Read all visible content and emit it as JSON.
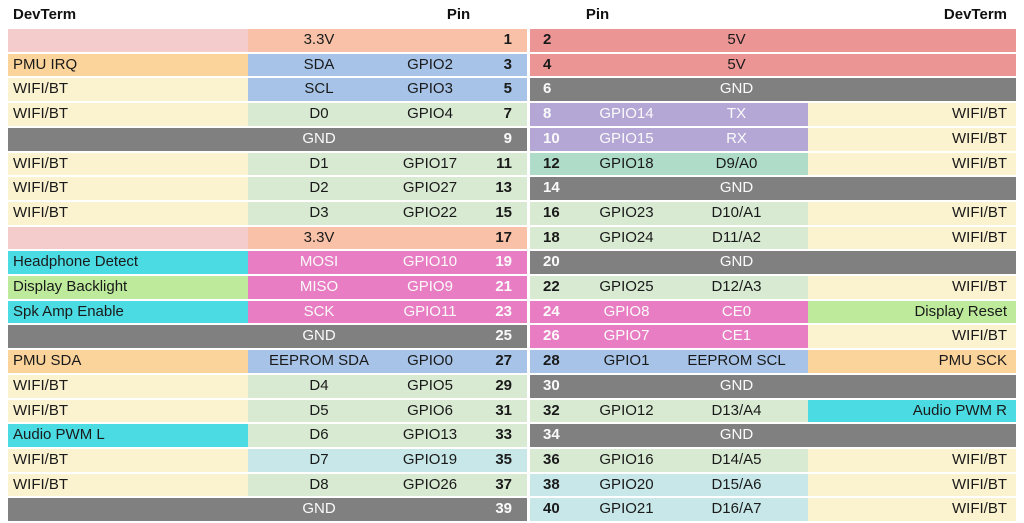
{
  "colors": {
    "pink": "#f4cccc",
    "salmon": "#f9c2a8",
    "red": "#ec9595",
    "orange": "#fbd49c",
    "yellow": "#fbf2cf",
    "blue": "#a7c4e8",
    "green": "#d9ead3",
    "teal": "#aedcc8",
    "lightcyan": "#c8e7e9",
    "magenta": "#e87dc3",
    "purple": "#b4a7d6",
    "gray": "#808080",
    "cyan": "#4adbe3",
    "lime": "#bdeb9b"
  },
  "text_colors": {
    "dark": "#1a1a1a",
    "light": "#fafafa"
  },
  "left_table": {
    "headers": {
      "devterm": "DevTerm",
      "pin": "Pin"
    },
    "rows": [
      {
        "pin": "1",
        "func": "3.3V",
        "gpio": "",
        "label": "",
        "func_bg": "salmon",
        "label_bg": "pink",
        "fg": "dark"
      },
      {
        "pin": "3",
        "func": "SDA",
        "gpio": "GPIO2",
        "label": "PMU IRQ",
        "func_bg": "blue",
        "label_bg": "orange",
        "fg": "dark"
      },
      {
        "pin": "5",
        "func": "SCL",
        "gpio": "GPIO3",
        "label": "WIFI/BT",
        "func_bg": "blue",
        "label_bg": "yellow",
        "fg": "dark"
      },
      {
        "pin": "7",
        "func": "D0",
        "gpio": "GPIO4",
        "label": "WIFI/BT",
        "func_bg": "green",
        "label_bg": "yellow",
        "fg": "dark"
      },
      {
        "pin": "9",
        "func": "GND",
        "gpio": "",
        "label": "",
        "func_bg": "gray",
        "label_bg": "gray",
        "fg": "light"
      },
      {
        "pin": "11",
        "func": "D1",
        "gpio": "GPIO17",
        "label": "WIFI/BT",
        "func_bg": "green",
        "label_bg": "yellow",
        "fg": "dark"
      },
      {
        "pin": "13",
        "func": "D2",
        "gpio": "GPIO27",
        "label": "WIFI/BT",
        "func_bg": "green",
        "label_bg": "yellow",
        "fg": "dark"
      },
      {
        "pin": "15",
        "func": "D3",
        "gpio": "GPIO22",
        "label": "WIFI/BT",
        "func_bg": "green",
        "label_bg": "yellow",
        "fg": "dark"
      },
      {
        "pin": "17",
        "func": "3.3V",
        "gpio": "",
        "label": "",
        "func_bg": "salmon",
        "label_bg": "pink",
        "fg": "dark"
      },
      {
        "pin": "19",
        "func": "MOSI",
        "gpio": "GPIO10",
        "label": "Headphone Detect",
        "func_bg": "magenta",
        "label_bg": "cyan",
        "fg": "light"
      },
      {
        "pin": "21",
        "func": "MISO",
        "gpio": "GPIO9",
        "label": "Display Backlight",
        "func_bg": "magenta",
        "label_bg": "lime",
        "fg": "light"
      },
      {
        "pin": "23",
        "func": "SCK",
        "gpio": "GPIO11",
        "label": "Spk Amp Enable",
        "func_bg": "magenta",
        "label_bg": "cyan",
        "fg": "light"
      },
      {
        "pin": "25",
        "func": "GND",
        "gpio": "",
        "label": "",
        "func_bg": "gray",
        "label_bg": "gray",
        "fg": "light"
      },
      {
        "pin": "27",
        "func": "EEPROM SDA",
        "gpio": "GPIO0",
        "label": "PMU SDA",
        "func_bg": "blue",
        "label_bg": "orange",
        "fg": "dark"
      },
      {
        "pin": "29",
        "func": "D4",
        "gpio": "GPIO5",
        "label": "WIFI/BT",
        "func_bg": "green",
        "label_bg": "yellow",
        "fg": "dark"
      },
      {
        "pin": "31",
        "func": "D5",
        "gpio": "GPIO6",
        "label": "WIFI/BT",
        "func_bg": "green",
        "label_bg": "yellow",
        "fg": "dark"
      },
      {
        "pin": "33",
        "func": "D6",
        "gpio": "GPIO13",
        "label": "Audio PWM L",
        "func_bg": "green",
        "label_bg": "cyan",
        "fg": "dark"
      },
      {
        "pin": "35",
        "func": "D7",
        "gpio": "GPIO19",
        "label": "WIFI/BT",
        "func_bg": "lightcyan",
        "label_bg": "yellow",
        "fg": "dark"
      },
      {
        "pin": "37",
        "func": "D8",
        "gpio": "GPIO26",
        "label": "WIFI/BT",
        "func_bg": "green",
        "label_bg": "yellow",
        "fg": "dark"
      },
      {
        "pin": "39",
        "func": "GND",
        "gpio": "",
        "label": "",
        "func_bg": "gray",
        "label_bg": "gray",
        "fg": "light"
      }
    ]
  },
  "right_table": {
    "headers": {
      "devterm": "DevTerm",
      "pin": "Pin"
    },
    "rows": [
      {
        "pin": "2",
        "gpio": "",
        "func": "5V",
        "label": "",
        "func_bg": "red",
        "label_bg": "red",
        "fg": "dark"
      },
      {
        "pin": "4",
        "gpio": "",
        "func": "5V",
        "label": "",
        "func_bg": "red",
        "label_bg": "red",
        "fg": "dark"
      },
      {
        "pin": "6",
        "gpio": "",
        "func": "GND",
        "label": "",
        "func_bg": "gray",
        "label_bg": "gray",
        "fg": "light"
      },
      {
        "pin": "8",
        "gpio": "GPIO14",
        "func": "TX",
        "label": "WIFI/BT",
        "func_bg": "purple",
        "label_bg": "yellow",
        "fg": "light"
      },
      {
        "pin": "10",
        "gpio": "GPIO15",
        "func": "RX",
        "label": "WIFI/BT",
        "func_bg": "purple",
        "label_bg": "yellow",
        "fg": "light"
      },
      {
        "pin": "12",
        "gpio": "GPIO18",
        "func": "D9/A0",
        "label": "WIFI/BT",
        "func_bg": "teal",
        "label_bg": "yellow",
        "fg": "dark"
      },
      {
        "pin": "14",
        "gpio": "",
        "func": "GND",
        "label": "",
        "func_bg": "gray",
        "label_bg": "gray",
        "fg": "light"
      },
      {
        "pin": "16",
        "gpio": "GPIO23",
        "func": "D10/A1",
        "label": "WIFI/BT",
        "func_bg": "green",
        "label_bg": "yellow",
        "fg": "dark"
      },
      {
        "pin": "18",
        "gpio": "GPIO24",
        "func": "D11/A2",
        "label": "WIFI/BT",
        "func_bg": "green",
        "label_bg": "yellow",
        "fg": "dark"
      },
      {
        "pin": "20",
        "gpio": "",
        "func": "GND",
        "label": "",
        "func_bg": "gray",
        "label_bg": "gray",
        "fg": "light"
      },
      {
        "pin": "22",
        "gpio": "GPIO25",
        "func": "D12/A3",
        "label": "WIFI/BT",
        "func_bg": "green",
        "label_bg": "yellow",
        "fg": "dark"
      },
      {
        "pin": "24",
        "gpio": "GPIO8",
        "func": "CE0",
        "label": "Display Reset",
        "func_bg": "magenta",
        "label_bg": "lime",
        "fg": "light"
      },
      {
        "pin": "26",
        "gpio": "GPIO7",
        "func": "CE1",
        "label": "WIFI/BT",
        "func_bg": "magenta",
        "label_bg": "yellow",
        "fg": "light"
      },
      {
        "pin": "28",
        "gpio": "GPIO1",
        "func": "EEPROM SCL",
        "label": "PMU SCK",
        "func_bg": "blue",
        "label_bg": "orange",
        "fg": "dark"
      },
      {
        "pin": "30",
        "gpio": "",
        "func": "GND",
        "label": "",
        "func_bg": "gray",
        "label_bg": "gray",
        "fg": "light"
      },
      {
        "pin": "32",
        "gpio": "GPIO12",
        "func": "D13/A4",
        "label": "Audio PWM R",
        "func_bg": "green",
        "label_bg": "cyan",
        "fg": "dark"
      },
      {
        "pin": "34",
        "gpio": "",
        "func": "GND",
        "label": "",
        "func_bg": "gray",
        "label_bg": "gray",
        "fg": "light"
      },
      {
        "pin": "36",
        "gpio": "GPIO16",
        "func": "D14/A5",
        "label": "WIFI/BT",
        "func_bg": "green",
        "label_bg": "yellow",
        "fg": "dark"
      },
      {
        "pin": "38",
        "gpio": "GPIO20",
        "func": "D15/A6",
        "label": "WIFI/BT",
        "func_bg": "lightcyan",
        "label_bg": "yellow",
        "fg": "dark"
      },
      {
        "pin": "40",
        "gpio": "GPIO21",
        "func": "D16/A7",
        "label": "WIFI/BT",
        "func_bg": "lightcyan",
        "label_bg": "yellow",
        "fg": "dark"
      }
    ]
  }
}
